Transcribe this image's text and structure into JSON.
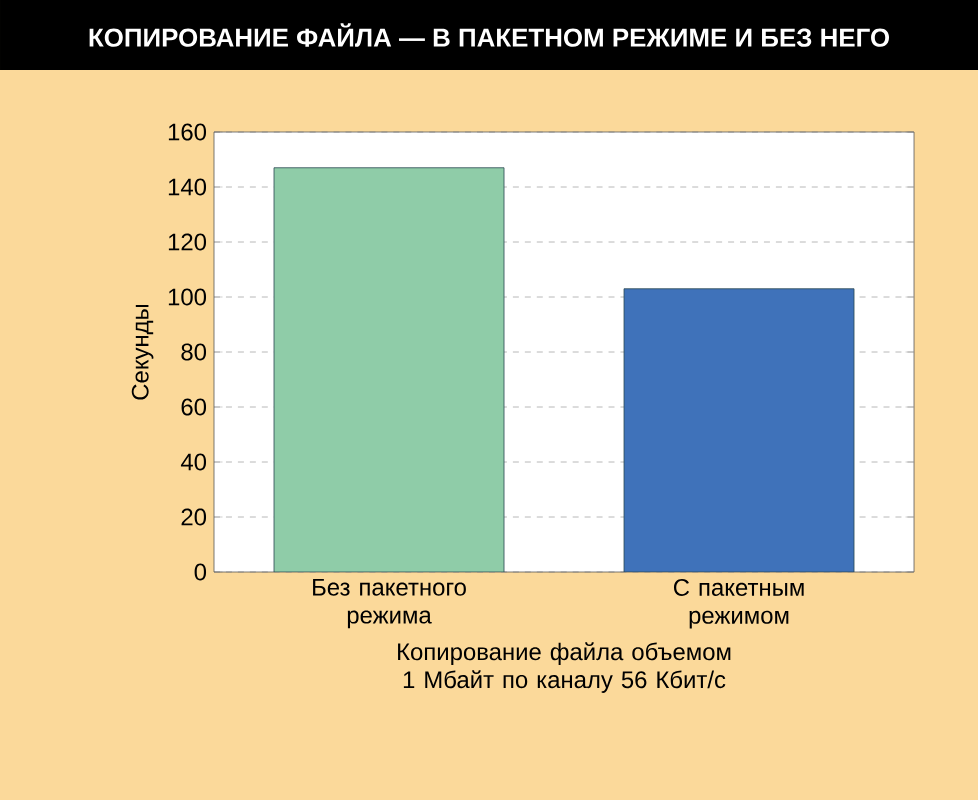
{
  "chart_data": {
    "type": "bar",
    "title": "КОПИРОВАНИЕ ФАЙЛА — В ПАКЕТНОМ РЕЖИМЕ И БЕЗ НЕГО",
    "categories": [
      "Без пакетного режима",
      "С пакетным режимом"
    ],
    "values": [
      147,
      103
    ],
    "colors": [
      "#8fcca8",
      "#3f72ba"
    ],
    "ylabel": "Секунды",
    "xlabel": "Копирование файла объемом 1 Мбайт по каналу 56 Кбит/с",
    "ylim": [
      0,
      160
    ],
    "yticks": [
      0,
      20,
      40,
      60,
      80,
      100,
      120,
      140,
      160
    ],
    "grid": "y"
  }
}
